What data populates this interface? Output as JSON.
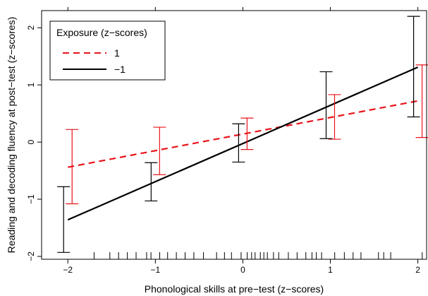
{
  "chart_data": {
    "type": "line",
    "xlabel": "Phonological skills at pre−test (z−scores)",
    "ylabel": "Reading and decoding fluency at post−test (z−scores)",
    "xlim": [
      -2.3,
      2.1
    ],
    "ylim": [
      -2.05,
      2.3
    ],
    "xticks": [
      -2,
      -1,
      0,
      1,
      2
    ],
    "yticks": [
      -2,
      -1,
      0,
      1,
      2
    ],
    "xtick_labels": [
      "−2",
      "−1",
      "0",
      "1",
      "2"
    ],
    "ytick_labels": [
      "−2",
      "−1",
      "0",
      "1",
      "2"
    ],
    "grid": false,
    "legend": {
      "title": "Exposure (z−scores)",
      "placement": "top-left",
      "entries": [
        "1",
        "−1"
      ]
    },
    "series": [
      {
        "name": "1",
        "color": "#e8141a",
        "line_style": "dashed",
        "line": [
          [
            -2,
            -0.44
          ],
          [
            2,
            0.72
          ]
        ],
        "error_bars": [
          {
            "x": -2,
            "lower": -1.08,
            "upper": 0.22
          },
          {
            "x": -1,
            "lower": -0.57,
            "upper": 0.26
          },
          {
            "x": 0,
            "lower": -0.13,
            "upper": 0.42
          },
          {
            "x": 1,
            "lower": 0.05,
            "upper": 0.83
          },
          {
            "x": 2,
            "lower": 0.08,
            "upper": 1.35
          }
        ]
      },
      {
        "name": "−1",
        "color": "#000000",
        "line_style": "solid",
        "line": [
          [
            -2,
            -1.36
          ],
          [
            2,
            1.31
          ]
        ],
        "error_bars": [
          {
            "x": -2,
            "lower": -1.93,
            "upper": -0.78
          },
          {
            "x": -1,
            "lower": -1.03,
            "upper": -0.36
          },
          {
            "x": 0,
            "lower": -0.35,
            "upper": 0.32
          },
          {
            "x": 1,
            "lower": 0.06,
            "upper": 1.23
          },
          {
            "x": 2,
            "lower": 0.44,
            "upper": 2.2
          }
        ]
      }
    ],
    "rug": [
      -1.7,
      -1.52,
      -1.42,
      -1.32,
      -1.22,
      -1.1,
      -1.05,
      -0.95,
      -0.86,
      -0.76,
      -0.66,
      -0.56,
      -0.45,
      -0.3,
      -0.21,
      -0.13,
      -0.02,
      0.05,
      0.1,
      0.14,
      0.2,
      0.24,
      0.28,
      0.35,
      0.41,
      0.52,
      0.62,
      0.72,
      0.79,
      0.84,
      0.9,
      1.05,
      1.16,
      1.26,
      1.35,
      1.55,
      1.61,
      1.69,
      2.05
    ]
  }
}
